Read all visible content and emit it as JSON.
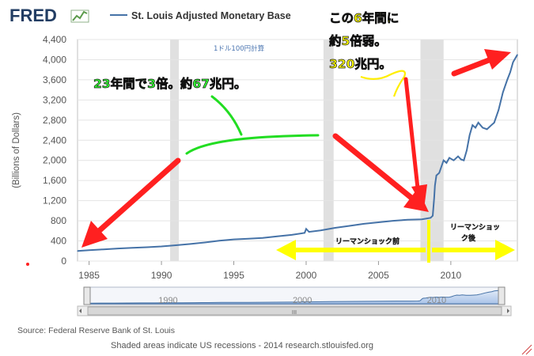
{
  "brand": {
    "logo_text": "FRED"
  },
  "legend": {
    "series_name": "St. Louis Adjusted Monetary Base"
  },
  "axis": {
    "ylabel": "(Billions of Dollars)",
    "y_ticks": [
      "0",
      "400",
      "800",
      "1,200",
      "1,600",
      "2,000",
      "2,400",
      "2,800",
      "3,200",
      "3,600",
      "4,000",
      "4,400"
    ],
    "x_ticks": [
      "1985",
      "1990",
      "1995",
      "2000",
      "2005",
      "2010"
    ]
  },
  "navigator": {
    "year_labels": [
      "1990",
      "2000",
      "2010"
    ],
    "scroll_glyph": "III"
  },
  "annotations": {
    "six_year_line1": "この6年間に",
    "six_year_line2": "約5倍弱。",
    "six_year_line3": "320兆円。",
    "twenty_three_years": "23年間で3倍。約67兆円。",
    "rate_note": "1ドル100円計算",
    "before_lehman": "リーマンショック前",
    "after_lehman_1": "リーマンショッ",
    "after_lehman_2": "ク後"
  },
  "footer": {
    "source": "Source: Federal Reserve Bank of St. Louis",
    "note": "Shaded areas indicate US recessions - 2014 research.stlouisfed.org"
  },
  "colors": {
    "line": "#4572a7",
    "arrow_red": "#ff2020",
    "arrow_yellow": "#ffff00",
    "annot_green": "#33ff33",
    "recession": "#e0e0e0"
  },
  "chart_data": {
    "type": "line",
    "title": "St. Louis Adjusted Monetary Base",
    "xlabel": "",
    "ylabel": "(Billions of Dollars)",
    "xlim": [
      1984.2,
      2014.6
    ],
    "ylim": [
      0,
      4400
    ],
    "recessions": [
      [
        1990.6,
        1991.2
      ],
      [
        2001.2,
        2001.9
      ],
      [
        2007.9,
        2009.5
      ]
    ],
    "series": [
      {
        "name": "St. Louis Adjusted Monetary Base",
        "x": [
          1984.2,
          1985,
          1986,
          1987,
          1988,
          1989,
          1990,
          1991,
          1992,
          1993,
          1994,
          1995,
          1996,
          1997,
          1998,
          1999,
          1999.9,
          2000.0,
          2000.2,
          2001,
          2002,
          2003,
          2004,
          2005,
          2006,
          2007,
          2008,
          2008.6,
          2008.75,
          2008.85,
          2008.9,
          2009.0,
          2009.2,
          2009.5,
          2009.7,
          2009.9,
          2010.2,
          2010.5,
          2010.7,
          2010.9,
          2011.1,
          2011.3,
          2011.5,
          2011.7,
          2011.9,
          2012.2,
          2012.5,
          2012.8,
          2013.0,
          2013.3,
          2013.6,
          2013.9,
          2014.1,
          2014.3,
          2014.5,
          2014.6
        ],
        "y": [
          200,
          215,
          232,
          250,
          262,
          275,
          290,
          315,
          340,
          370,
          405,
          430,
          445,
          460,
          490,
          520,
          560,
          640,
          580,
          610,
          660,
          700,
          740,
          770,
          800,
          820,
          830,
          860,
          900,
          1250,
          1500,
          1700,
          1750,
          2000,
          1950,
          2050,
          2000,
          2080,
          2020,
          2000,
          2200,
          2500,
          2700,
          2650,
          2750,
          2650,
          2620,
          2700,
          2750,
          3000,
          3350,
          3600,
          3750,
          3950,
          4050,
          4100
        ]
      }
    ]
  }
}
